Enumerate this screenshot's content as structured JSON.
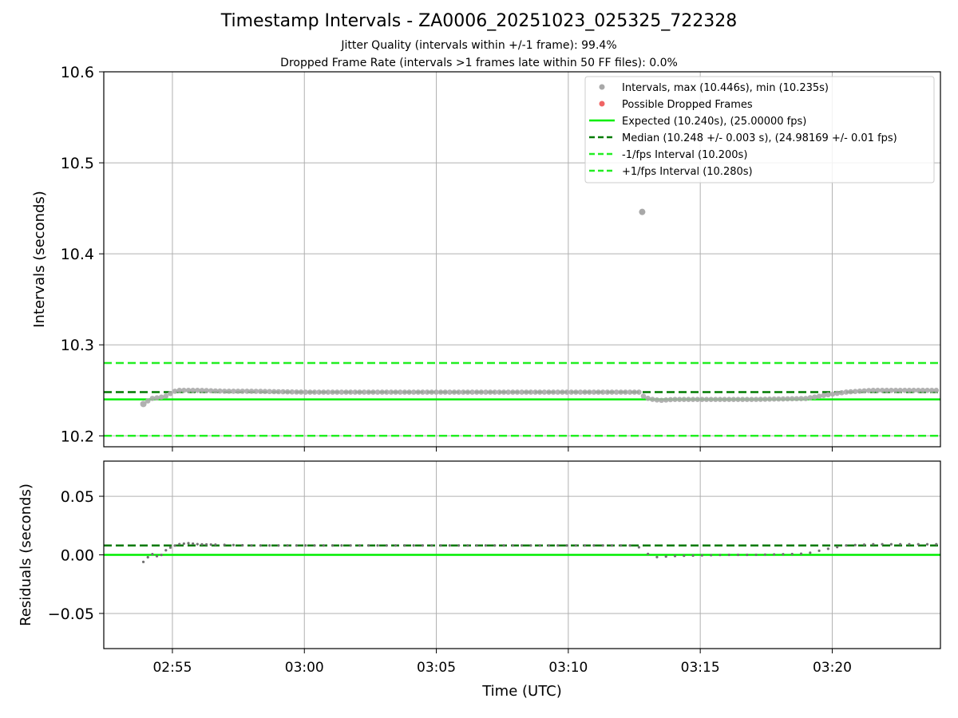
{
  "chart_data": [
    {
      "type": "scatter",
      "title": "Timestamp Intervals - ZA0006_20251023_025325_722328",
      "subtitle_1": "Jitter Quality (intervals within +/-1 frame): 99.4%",
      "subtitle_2": "Dropped Frame Rate (intervals >1 frames late within 50 FF files): 0.0%",
      "ylabel": "Intervals (seconds)",
      "ylim": [
        10.188,
        10.6
      ],
      "yticks": [
        10.2,
        10.3,
        10.4,
        10.5,
        10.6
      ],
      "ytick_labels": [
        "10.2",
        "10.3",
        "10.4",
        "10.5",
        "10.6"
      ],
      "xlim_minutes": [
        -2.6,
        29.1
      ],
      "grid": true,
      "legend": {
        "placement": "upper right",
        "entries": [
          "Intervals, max (10.446s), min (10.235s)",
          "Possible Dropped Frames",
          "Expected (10.240s), (25.00000 fps)",
          "Median (10.248 +/- 0.003 s), (24.98169 +/- 0.01 fps)",
          "-1/fps Interval (10.200s)",
          "+1/fps Interval (10.280s)"
        ]
      },
      "reference_lines": {
        "expected": 10.24,
        "median": 10.248,
        "minus_one_fps": 10.2,
        "plus_one_fps": 10.28
      },
      "series": [
        {
          "name": "Intervals",
          "color": "#a8a8a8",
          "max": 10.446,
          "min": 10.235
        },
        {
          "name": "Possible Dropped Frames",
          "color": "#f06464",
          "values": []
        }
      ],
      "intervals_profile": {
        "t": [
          -1.1,
          -0.8,
          -0.5,
          -0.2,
          0.0,
          0.2,
          0.6,
          1.0,
          2.0,
          3.0,
          5.0,
          10.0,
          15.0,
          17.7,
          17.9,
          18.2,
          18.5,
          19.0,
          21.0,
          22.0,
          24.0,
          24.8,
          25.5,
          26.5,
          29.0
        ],
        "v": [
          10.235,
          10.241,
          10.242,
          10.244,
          10.248,
          10.25,
          10.25,
          10.25,
          10.249,
          10.249,
          10.248,
          10.248,
          10.248,
          10.248,
          10.242,
          10.24,
          10.239,
          10.24,
          10.24,
          10.24,
          10.241,
          10.245,
          10.248,
          10.25,
          10.25
        ]
      },
      "outliers": [
        {
          "t": 17.8,
          "v": 10.446
        }
      ]
    },
    {
      "type": "scatter",
      "ylabel": "Residuals (seconds)",
      "xlabel": "Time (UTC)",
      "ylim": [
        -0.08,
        0.08
      ],
      "yticks": [
        -0.05,
        0.0,
        0.05
      ],
      "ytick_labels": [
        "−0.05",
        "0.00",
        "0.05"
      ],
      "xticks_minutes": [
        0,
        5,
        10,
        15,
        20,
        25
      ],
      "xtick_labels": [
        "02:55",
        "03:00",
        "03:05",
        "03:10",
        "03:15",
        "03:20"
      ],
      "xlim_minutes": [
        -2.6,
        29.1
      ],
      "grid": true,
      "reference_lines": {
        "zero": 0.0,
        "median_residual": 0.008
      },
      "residual_color": "#707070",
      "residual_profile": {
        "t": [
          -1.1,
          -0.8,
          -0.5,
          -0.2,
          0.0,
          0.2,
          0.6,
          1.0,
          3.0,
          10.0,
          17.6,
          17.9,
          18.3,
          19.0,
          21.0,
          22.0,
          24.0,
          24.8,
          25.5,
          26.5,
          29.0
        ],
        "v": [
          -0.006,
          0.001,
          -0.002,
          0.005,
          0.007,
          0.009,
          0.01,
          0.009,
          0.008,
          0.008,
          0.008,
          0.002,
          -0.002,
          -0.001,
          0.0,
          0.0,
          0.001,
          0.005,
          0.008,
          0.009,
          0.009
        ]
      }
    }
  ],
  "colors": {
    "expected": "#00ee00",
    "median": "#007a00",
    "fps_bounds": "#22ee22",
    "grid": "#b0b0b0",
    "intervals": "#a8a8a8",
    "dropped": "#f06464"
  }
}
